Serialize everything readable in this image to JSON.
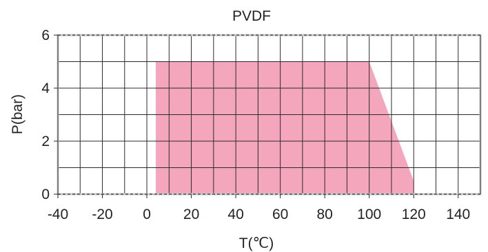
{
  "chart_data": {
    "type": "area",
    "title": "PVDF",
    "xlabel": "T(℃)",
    "ylabel": "P(bar)",
    "xlim": [
      -40,
      150
    ],
    "ylim": [
      0,
      6
    ],
    "x_ticks": [
      -40,
      -20,
      0,
      20,
      40,
      60,
      80,
      100,
      120,
      140
    ],
    "y_ticks": [
      0,
      2,
      4,
      6
    ],
    "x_tick_labels": [
      "-40",
      "-20",
      "0",
      "20",
      "40",
      "60",
      "80",
      "100",
      "120",
      "140"
    ],
    "y_tick_labels": [
      "0",
      "2",
      "4",
      "6"
    ],
    "grid": true,
    "grid_x_step": 10,
    "grid_y_step": 1,
    "series": [
      {
        "x": [
          4,
          4,
          100,
          120,
          120
        ],
        "y": [
          0,
          5,
          5,
          0.5,
          0
        ],
        "color": "#f4a6bd"
      }
    ]
  }
}
